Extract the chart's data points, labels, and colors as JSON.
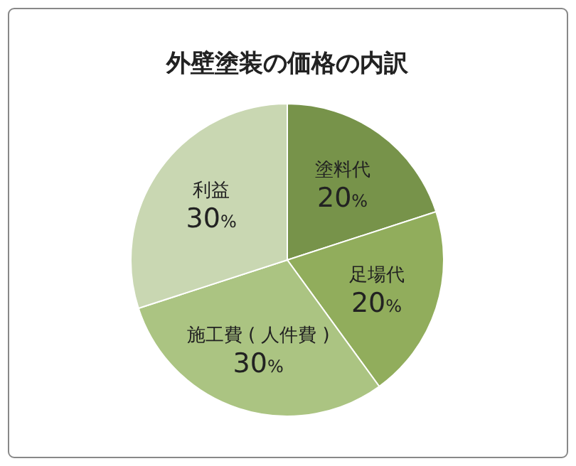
{
  "chart_data": {
    "type": "pie",
    "title": "外壁塗装の価格の内訳",
    "categories": [
      "塗料代",
      "足場代",
      "施工費 ( 人件費 )",
      "利益"
    ],
    "values": [
      20,
      20,
      30,
      30
    ],
    "colors": [
      "#77934a",
      "#91ad5c",
      "#abc482",
      "#c9d7b2"
    ],
    "value_labels": [
      "20%",
      "20%",
      "30%",
      "30%"
    ]
  }
}
